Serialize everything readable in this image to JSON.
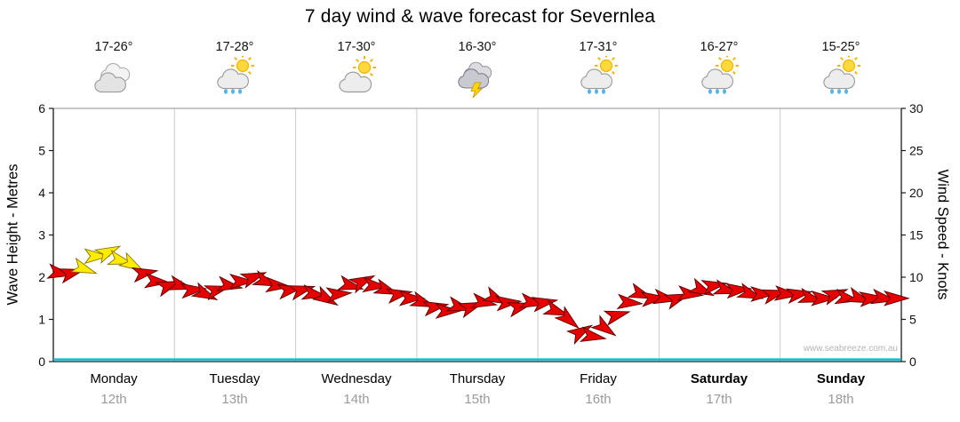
{
  "title": "7 day wind & wave forecast for Severnlea",
  "watermark": "www.seabreeze.com.au",
  "days": [
    {
      "name": "Monday",
      "date": "12th",
      "temp": "17-26°",
      "icon": "cloudy",
      "bold": false
    },
    {
      "name": "Tuesday",
      "date": "13th",
      "temp": "17-28°",
      "icon": "sun-cloud-rain",
      "bold": false
    },
    {
      "name": "Wednesday",
      "date": "14th",
      "temp": "17-30°",
      "icon": "sun-cloud",
      "bold": false
    },
    {
      "name": "Thursday",
      "date": "15th",
      "temp": "16-30°",
      "icon": "thunderstorm",
      "bold": false
    },
    {
      "name": "Friday",
      "date": "16th",
      "temp": "17-31°",
      "icon": "sun-cloud-rain",
      "bold": false
    },
    {
      "name": "Saturday",
      "date": "17th",
      "temp": "16-27°",
      "icon": "sun-cloud-rain",
      "bold": true
    },
    {
      "name": "Sunday",
      "date": "18th",
      "temp": "15-25°",
      "icon": "sun-cloud-rain",
      "bold": true
    }
  ],
  "chart_data": {
    "type": "line",
    "title": "7 day wind & wave forecast for Severnlea",
    "categories": [
      "Monday 12th",
      "Tuesday 13th",
      "Wednesday 14th",
      "Thursday 15th",
      "Friday 16th",
      "Saturday 17th",
      "Sunday 18th"
    ],
    "samples_per_day": 10,
    "left_axis": {
      "label": "Wave Height - Metres",
      "min": 0,
      "max": 6,
      "ticks": [
        0,
        1,
        2,
        3,
        4,
        5,
        6
      ]
    },
    "right_axis": {
      "label": "Wind Speed - Knots",
      "min": 0,
      "max": 30,
      "ticks": [
        0,
        5,
        10,
        15,
        20,
        25,
        30
      ]
    },
    "grid": "vertical-day-separators",
    "legend": "none",
    "yellow_min_knots": 11,
    "colors": {
      "arrow_light": "#e60000",
      "arrow_strong": "#ffec00",
      "wave": "#00bcd4",
      "gridline": "#cccccc"
    },
    "series": [
      {
        "name": "Wind Speed",
        "unit": "knots",
        "axis": "right",
        "values": [
          10.5,
          10.5,
          11,
          12.5,
          13,
          12,
          11.5,
          10.5,
          9.5,
          9,
          9,
          8.5,
          8,
          8.5,
          9,
          9.5,
          10,
          9.5,
          9,
          8.5,
          8.5,
          8,
          7.5,
          8,
          9,
          9.5,
          9,
          8.5,
          8,
          7.5,
          7,
          6.5,
          6,
          6.5,
          6.5,
          7,
          7.5,
          7,
          6.5,
          7,
          7,
          6,
          5,
          3.5,
          3,
          4,
          5.5,
          7,
          8,
          7.5,
          7.5,
          7.5,
          8,
          8.5,
          9,
          8.5,
          8.5,
          8,
          8,
          8,
          8,
          8,
          7.5,
          7.5,
          8,
          7.5,
          7.5,
          7.5,
          7.5,
          7.5
        ]
      },
      {
        "name": "Wind Direction",
        "unit": "deg",
        "values": [
          10,
          -15,
          20,
          0,
          -25,
          15,
          30,
          -10,
          5,
          -20,
          15,
          -5,
          25,
          -15,
          10,
          0,
          -20,
          20,
          5,
          -10,
          -15,
          10,
          30,
          -5,
          15,
          -25,
          5,
          20,
          -10,
          0,
          20,
          -10,
          0,
          15,
          -20,
          10,
          25,
          -5,
          -15,
          10,
          -10,
          20,
          40,
          -30,
          10,
          35,
          -15,
          5,
          20,
          -5,
          10,
          -20,
          5,
          25,
          -10,
          15,
          -5,
          20,
          0,
          -15,
          5,
          -10,
          15,
          0,
          -20,
          10,
          20,
          -5,
          10,
          0
        ]
      },
      {
        "name": "Wave Height",
        "unit": "m",
        "axis": "left",
        "values": [
          0.05,
          0.05,
          0.05,
          0.05,
          0.05,
          0.05,
          0.05,
          0.05
        ]
      }
    ]
  }
}
